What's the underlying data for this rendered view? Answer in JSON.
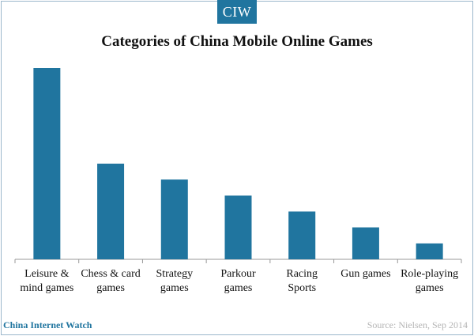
{
  "brand": {
    "badge": "CIW",
    "site_name": "China Internet Watch"
  },
  "source": "Source: Nielsen, Sep 2014",
  "colors": {
    "bar": "#20759f",
    "axis": "#999999",
    "label": "#111111"
  },
  "chart_data": {
    "type": "bar",
    "title": "Categories of China Mobile Online Games",
    "categories": [
      [
        "Leisure &",
        "mind games"
      ],
      [
        "Chess & card",
        "games"
      ],
      [
        "Strategy",
        "games"
      ],
      [
        "Parkour",
        "games"
      ],
      [
        "Racing",
        "Sports"
      ],
      [
        "Gun games"
      ],
      [
        "Role-playing",
        "games"
      ]
    ],
    "values": [
      100,
      50,
      41.7,
      33.3,
      25,
      16.7,
      8.3
    ],
    "ylim": [
      0,
      100
    ],
    "xlabel": "",
    "ylabel": "",
    "grid": false,
    "legend": "none"
  }
}
